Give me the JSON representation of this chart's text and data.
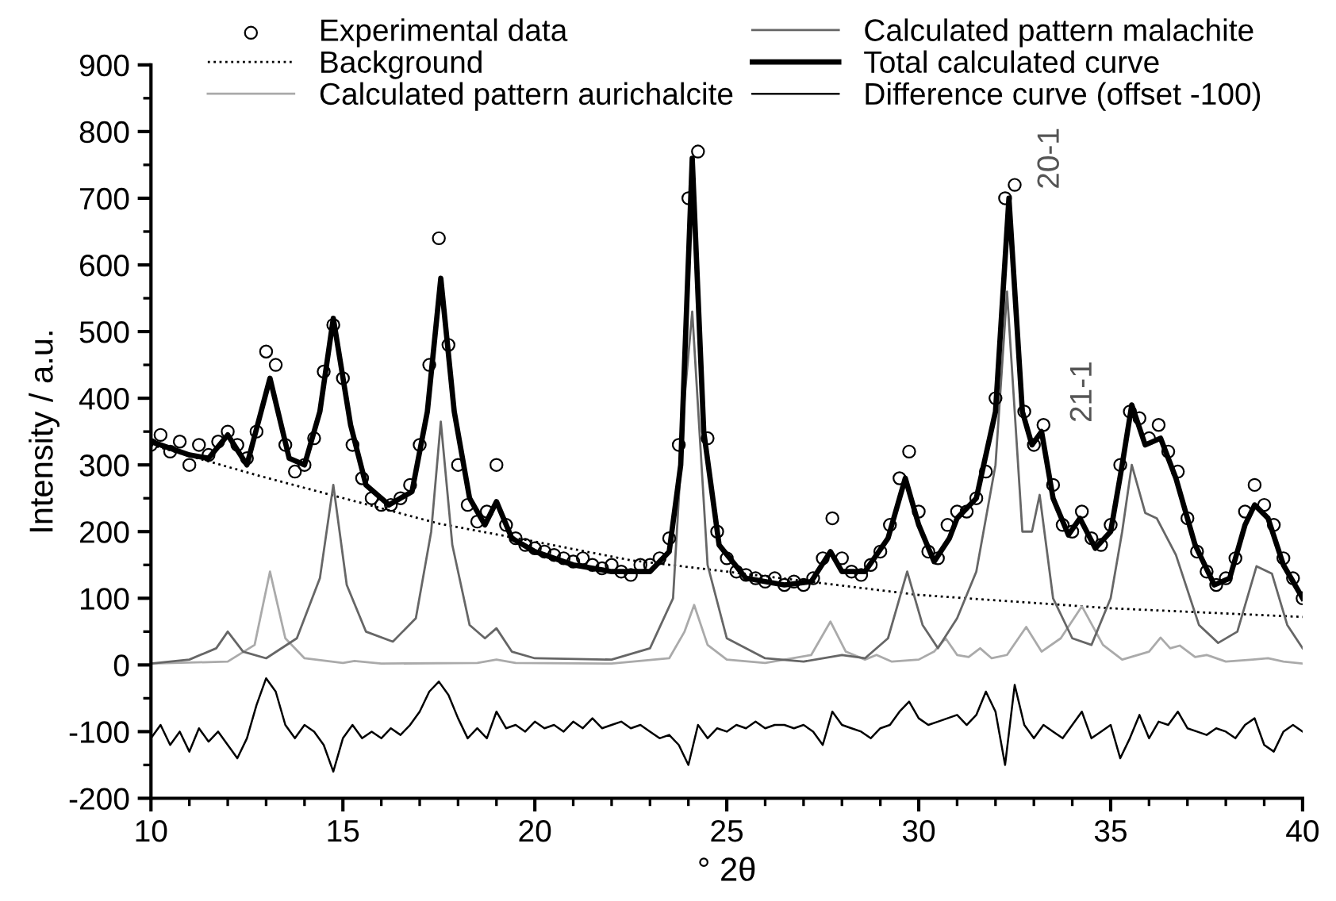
{
  "chart_data": {
    "type": "line",
    "xlabel": "° 2θ",
    "ylabel": "Intensity / a.u.",
    "xlim": [
      10,
      40
    ],
    "ylim": [
      -200,
      900
    ],
    "xticks": [
      10,
      15,
      20,
      25,
      30,
      35,
      40
    ],
    "yticks": [
      -200,
      -100,
      0,
      100,
      200,
      300,
      400,
      500,
      600,
      700,
      800,
      900
    ],
    "grid": false,
    "legend": "top",
    "annotations": [
      {
        "text": "20-1",
        "x": 32.35,
        "y": 700
      },
      {
        "text": "21-1",
        "x": 33.2,
        "y": 350
      }
    ],
    "series": [
      {
        "name": "Experimental data",
        "type": "scatter",
        "marker": "circle",
        "color": "#000000",
        "x": [
          10,
          10.25,
          10.5,
          10.75,
          11,
          11.25,
          11.5,
          11.75,
          12,
          12.25,
          12.5,
          12.75,
          13,
          13.25,
          13.5,
          13.75,
          14,
          14.25,
          14.5,
          14.75,
          15,
          15.25,
          15.5,
          15.75,
          16,
          16.25,
          16.5,
          16.75,
          17,
          17.25,
          17.5,
          17.75,
          18,
          18.25,
          18.5,
          18.75,
          19,
          19.25,
          19.5,
          19.75,
          20,
          20.25,
          20.5,
          20.75,
          21,
          21.25,
          21.5,
          21.75,
          22,
          22.25,
          22.5,
          22.75,
          23,
          23.25,
          23.5,
          23.75,
          24,
          24.25,
          24.5,
          24.75,
          25,
          25.25,
          25.5,
          25.75,
          26,
          26.25,
          26.5,
          26.75,
          27,
          27.25,
          27.5,
          27.75,
          28,
          28.25,
          28.5,
          28.75,
          29,
          29.25,
          29.5,
          29.75,
          30,
          30.25,
          30.5,
          30.75,
          31,
          31.25,
          31.5,
          31.75,
          32,
          32.25,
          32.5,
          32.75,
          33,
          33.25,
          33.5,
          33.75,
          34,
          34.25,
          34.5,
          34.75,
          35,
          35.25,
          35.5,
          35.75,
          36,
          36.25,
          36.5,
          36.75,
          37,
          37.25,
          37.5,
          37.75,
          38,
          38.25,
          38.5,
          38.75,
          39,
          39.25,
          39.5,
          39.75,
          40
        ],
        "values": [
          330,
          345,
          320,
          335,
          300,
          330,
          315,
          335,
          350,
          330,
          310,
          350,
          470,
          450,
          330,
          290,
          300,
          340,
          440,
          510,
          430,
          330,
          280,
          250,
          240,
          240,
          250,
          270,
          330,
          450,
          640,
          480,
          300,
          240,
          215,
          230,
          300,
          210,
          190,
          180,
          175,
          170,
          165,
          160,
          155,
          160,
          150,
          145,
          150,
          140,
          135,
          150,
          150,
          160,
          190,
          330,
          700,
          770,
          340,
          200,
          160,
          140,
          135,
          130,
          125,
          130,
          120,
          125,
          120,
          130,
          160,
          220,
          160,
          140,
          135,
          150,
          170,
          210,
          280,
          320,
          230,
          170,
          160,
          210,
          230,
          230,
          250,
          290,
          400,
          700,
          720,
          380,
          330,
          360,
          270,
          210,
          200,
          230,
          190,
          180,
          210,
          300,
          380,
          370,
          340,
          360,
          320,
          290,
          220,
          170,
          140,
          120,
          130,
          160,
          230,
          270,
          240,
          210,
          160,
          130,
          100
        ]
      },
      {
        "name": "Background",
        "line_style": "dotted",
        "color": "#000000",
        "x": [
          10,
          12.8,
          17.5,
          20,
          22.5,
          25,
          30,
          35,
          40
        ],
        "values": [
          330,
          284,
          212,
          185,
          157,
          140,
          105,
          85,
          72
        ]
      },
      {
        "name": "Calculated pattern aurichalcite",
        "color": "#aaaaaa",
        "x": [
          10,
          12,
          12.7,
          13.1,
          13.5,
          14,
          15,
          15.3,
          16,
          18.5,
          19,
          19.5,
          22,
          23.5,
          23.9,
          24.15,
          24.5,
          25,
          26,
          27.2,
          27.7,
          28.1,
          28.6,
          28.9,
          29.3,
          30,
          30.4,
          30.7,
          31,
          31.3,
          31.6,
          31.9,
          32.3,
          32.8,
          33.2,
          33.7,
          34.25,
          34.8,
          35.3,
          36,
          36.3,
          36.55,
          36.8,
          37.2,
          37.5,
          38,
          38.7,
          39.1,
          39.5,
          40
        ],
        "values": [
          2,
          5,
          30,
          140,
          40,
          10,
          3,
          6,
          2,
          3,
          8,
          3,
          2,
          10,
          50,
          90,
          30,
          8,
          3,
          15,
          65,
          20,
          8,
          15,
          5,
          8,
          20,
          40,
          15,
          12,
          25,
          10,
          15,
          57,
          20,
          40,
          88,
          30,
          8,
          20,
          41,
          25,
          29,
          12,
          15,
          5,
          8,
          10,
          5,
          2
        ]
      },
      {
        "name": "Calculated pattern malachite",
        "color": "#666666",
        "x": [
          10,
          11,
          11.7,
          12,
          12.4,
          13,
          13.8,
          14.4,
          14.75,
          15.1,
          15.6,
          16.3,
          16.9,
          17.3,
          17.55,
          17.85,
          18.3,
          18.7,
          19,
          19.4,
          20,
          22,
          23,
          23.6,
          23.9,
          24.1,
          24.5,
          25,
          26,
          27,
          28,
          28.6,
          29.2,
          29.7,
          30.1,
          30.5,
          31,
          31.5,
          32,
          32.3,
          32.7,
          32.95,
          33.15,
          33.5,
          34,
          34.5,
          35,
          35.3,
          35.55,
          35.9,
          36.2,
          36.7,
          37.3,
          37.8,
          38.3,
          38.8,
          39.2,
          39.6,
          40
        ],
        "values": [
          2,
          8,
          25,
          50,
          20,
          10,
          40,
          130,
          270,
          120,
          50,
          35,
          70,
          200,
          365,
          180,
          60,
          40,
          55,
          20,
          10,
          8,
          25,
          100,
          400,
          530,
          150,
          40,
          10,
          5,
          15,
          10,
          40,
          140,
          60,
          25,
          70,
          140,
          300,
          560,
          200,
          200,
          255,
          100,
          40,
          30,
          100,
          200,
          300,
          228,
          220,
          165,
          60,
          33,
          50,
          148,
          137,
          60,
          25
        ]
      },
      {
        "name": "Total calculated curve",
        "color": "#000000",
        "x": [
          10,
          11,
          11.5,
          12,
          12.5,
          13.1,
          13.6,
          14,
          14.4,
          14.75,
          15.2,
          15.6,
          16.2,
          16.8,
          17.2,
          17.55,
          17.9,
          18.3,
          18.7,
          19,
          19.4,
          20,
          21,
          22,
          23,
          23.5,
          23.8,
          24.1,
          24.4,
          24.8,
          25.5,
          26.5,
          27.2,
          27.7,
          28,
          28.6,
          29.2,
          29.65,
          30,
          30.4,
          30.8,
          31,
          31.5,
          32,
          32.35,
          32.7,
          32.95,
          33.2,
          33.5,
          33.9,
          34.2,
          34.6,
          35,
          35.3,
          35.55,
          35.9,
          36.3,
          36.7,
          37.2,
          37.7,
          38.1,
          38.5,
          38.75,
          39.1,
          39.5,
          40
        ],
        "values": [
          335,
          315,
          310,
          345,
          300,
          430,
          310,
          300,
          380,
          520,
          360,
          270,
          240,
          260,
          380,
          580,
          380,
          250,
          210,
          245,
          190,
          170,
          150,
          140,
          140,
          170,
          300,
          760,
          350,
          180,
          130,
          120,
          125,
          170,
          140,
          140,
          190,
          280,
          210,
          155,
          190,
          220,
          250,
          380,
          700,
          380,
          330,
          350,
          250,
          195,
          220,
          175,
          200,
          300,
          390,
          330,
          340,
          280,
          180,
          120,
          130,
          210,
          240,
          220,
          150,
          100
        ]
      },
      {
        "name": "Difference curve (offset -100)",
        "color": "#000000",
        "x": [
          10,
          10.25,
          10.5,
          10.75,
          11,
          11.25,
          11.5,
          11.75,
          12,
          12.25,
          12.5,
          12.75,
          13,
          13.25,
          13.5,
          13.75,
          14,
          14.25,
          14.5,
          14.75,
          15,
          15.25,
          15.5,
          15.75,
          16,
          16.25,
          16.5,
          16.75,
          17,
          17.25,
          17.5,
          17.75,
          18,
          18.25,
          18.5,
          18.75,
          19,
          19.25,
          19.5,
          19.75,
          20,
          20.25,
          20.5,
          20.75,
          21,
          21.25,
          21.5,
          21.75,
          22,
          22.25,
          22.5,
          22.75,
          23,
          23.25,
          23.5,
          23.75,
          24,
          24.25,
          24.5,
          24.75,
          25,
          25.25,
          25.5,
          25.75,
          26,
          26.25,
          26.5,
          26.75,
          27,
          27.25,
          27.5,
          27.75,
          28,
          28.25,
          28.5,
          28.75,
          29,
          29.25,
          29.5,
          29.75,
          30,
          30.25,
          30.5,
          30.75,
          31,
          31.25,
          31.5,
          31.75,
          32,
          32.25,
          32.5,
          32.75,
          33,
          33.25,
          33.5,
          33.75,
          34,
          34.25,
          34.5,
          34.75,
          35,
          35.25,
          35.5,
          35.75,
          36,
          36.25,
          36.5,
          36.75,
          37,
          37.25,
          37.5,
          37.75,
          38,
          38.25,
          38.5,
          38.75,
          39,
          39.25,
          39.5,
          39.75,
          40
        ],
        "values": [
          -110,
          -90,
          -120,
          -100,
          -130,
          -95,
          -115,
          -100,
          -120,
          -140,
          -110,
          -60,
          -20,
          -40,
          -90,
          -110,
          -90,
          -100,
          -120,
          -160,
          -110,
          -90,
          -110,
          -100,
          -110,
          -95,
          -105,
          -90,
          -70,
          -40,
          -25,
          -45,
          -80,
          -110,
          -95,
          -110,
          -70,
          -95,
          -90,
          -100,
          -85,
          -95,
          -90,
          -100,
          -85,
          -95,
          -80,
          -95,
          -90,
          -85,
          -95,
          -90,
          -100,
          -110,
          -105,
          -120,
          -150,
          -90,
          -110,
          -95,
          -100,
          -90,
          -95,
          -85,
          -95,
          -90,
          -90,
          -95,
          -90,
          -100,
          -120,
          -70,
          -90,
          -95,
          -100,
          -110,
          -95,
          -90,
          -70,
          -55,
          -80,
          -90,
          -85,
          -80,
          -75,
          -90,
          -75,
          -40,
          -70,
          -150,
          -30,
          -90,
          -110,
          -90,
          -100,
          -110,
          -90,
          -70,
          -110,
          -100,
          -90,
          -140,
          -110,
          -75,
          -110,
          -85,
          -90,
          -70,
          -95,
          -100,
          -105,
          -95,
          -100,
          -110,
          -90,
          -80,
          -120,
          -130,
          -100,
          -90,
          -100
        ]
      }
    ]
  }
}
